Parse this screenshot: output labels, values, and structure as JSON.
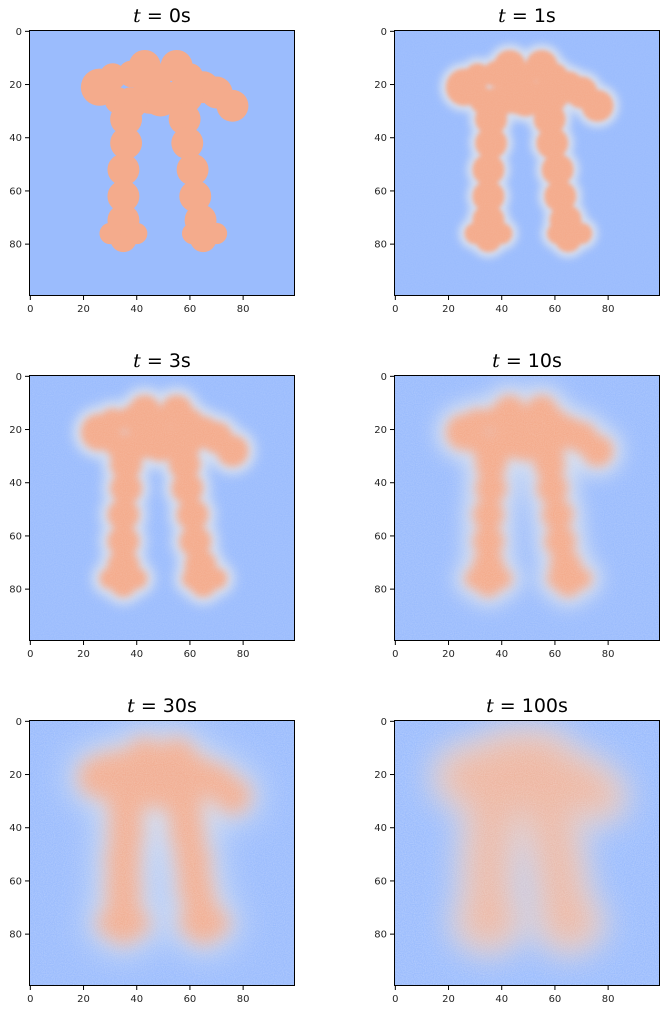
{
  "chart_data": {
    "type": "heatmap",
    "description_of_field": "2D diffusion of a shape on a 100x100 grid, coolwarm colormap",
    "grid_size": [
      100,
      100
    ],
    "axis_ticks": [
      0,
      20,
      40,
      60,
      80
    ],
    "xlim": [
      0,
      99
    ],
    "ylim": [
      99,
      0
    ],
    "colors": {
      "background": "#9bbcfd",
      "shape": "#f4ab8c",
      "mid": "#dde3ee"
    },
    "panels": [
      {
        "t_label": "t",
        "eq": " = ",
        "value_label": "0s",
        "time": 0
      },
      {
        "t_label": "t",
        "eq": " = ",
        "value_label": "1s",
        "time": 1
      },
      {
        "t_label": "t",
        "eq": " = ",
        "value_label": "3s",
        "time": 3
      },
      {
        "t_label": "t",
        "eq": " = ",
        "value_label": "10s",
        "time": 10
      },
      {
        "t_label": "t",
        "eq": " = ",
        "value_label": "30s",
        "time": 30
      },
      {
        "t_label": "t",
        "eq": " = ",
        "value_label": "100s",
        "time": 100
      }
    ],
    "shape_circles": [
      [
        26,
        21,
        7
      ],
      [
        31,
        17,
        5
      ],
      [
        38,
        16,
        5
      ],
      [
        43,
        13,
        6
      ],
      [
        48,
        17,
        5
      ],
      [
        55,
        13,
        6
      ],
      [
        60,
        17,
        5
      ],
      [
        65,
        21,
        6
      ],
      [
        70,
        23,
        6
      ],
      [
        76,
        28,
        6
      ],
      [
        33,
        26,
        5
      ],
      [
        45,
        24,
        7
      ],
      [
        58,
        24,
        7
      ],
      [
        49,
        25,
        7
      ],
      [
        38,
        27,
        6
      ],
      [
        36,
        33,
        6
      ],
      [
        36,
        42,
        6
      ],
      [
        35,
        52,
        6
      ],
      [
        35,
        62,
        6
      ],
      [
        35,
        71,
        6
      ],
      [
        35,
        78,
        5
      ],
      [
        30,
        76,
        4
      ],
      [
        40,
        76,
        4
      ],
      [
        58,
        33,
        6
      ],
      [
        59,
        42,
        6
      ],
      [
        61,
        52,
        6
      ],
      [
        62,
        62,
        6
      ],
      [
        64,
        71,
        6
      ],
      [
        65,
        78,
        5
      ],
      [
        70,
        76,
        4
      ],
      [
        61,
        76,
        4
      ]
    ]
  }
}
